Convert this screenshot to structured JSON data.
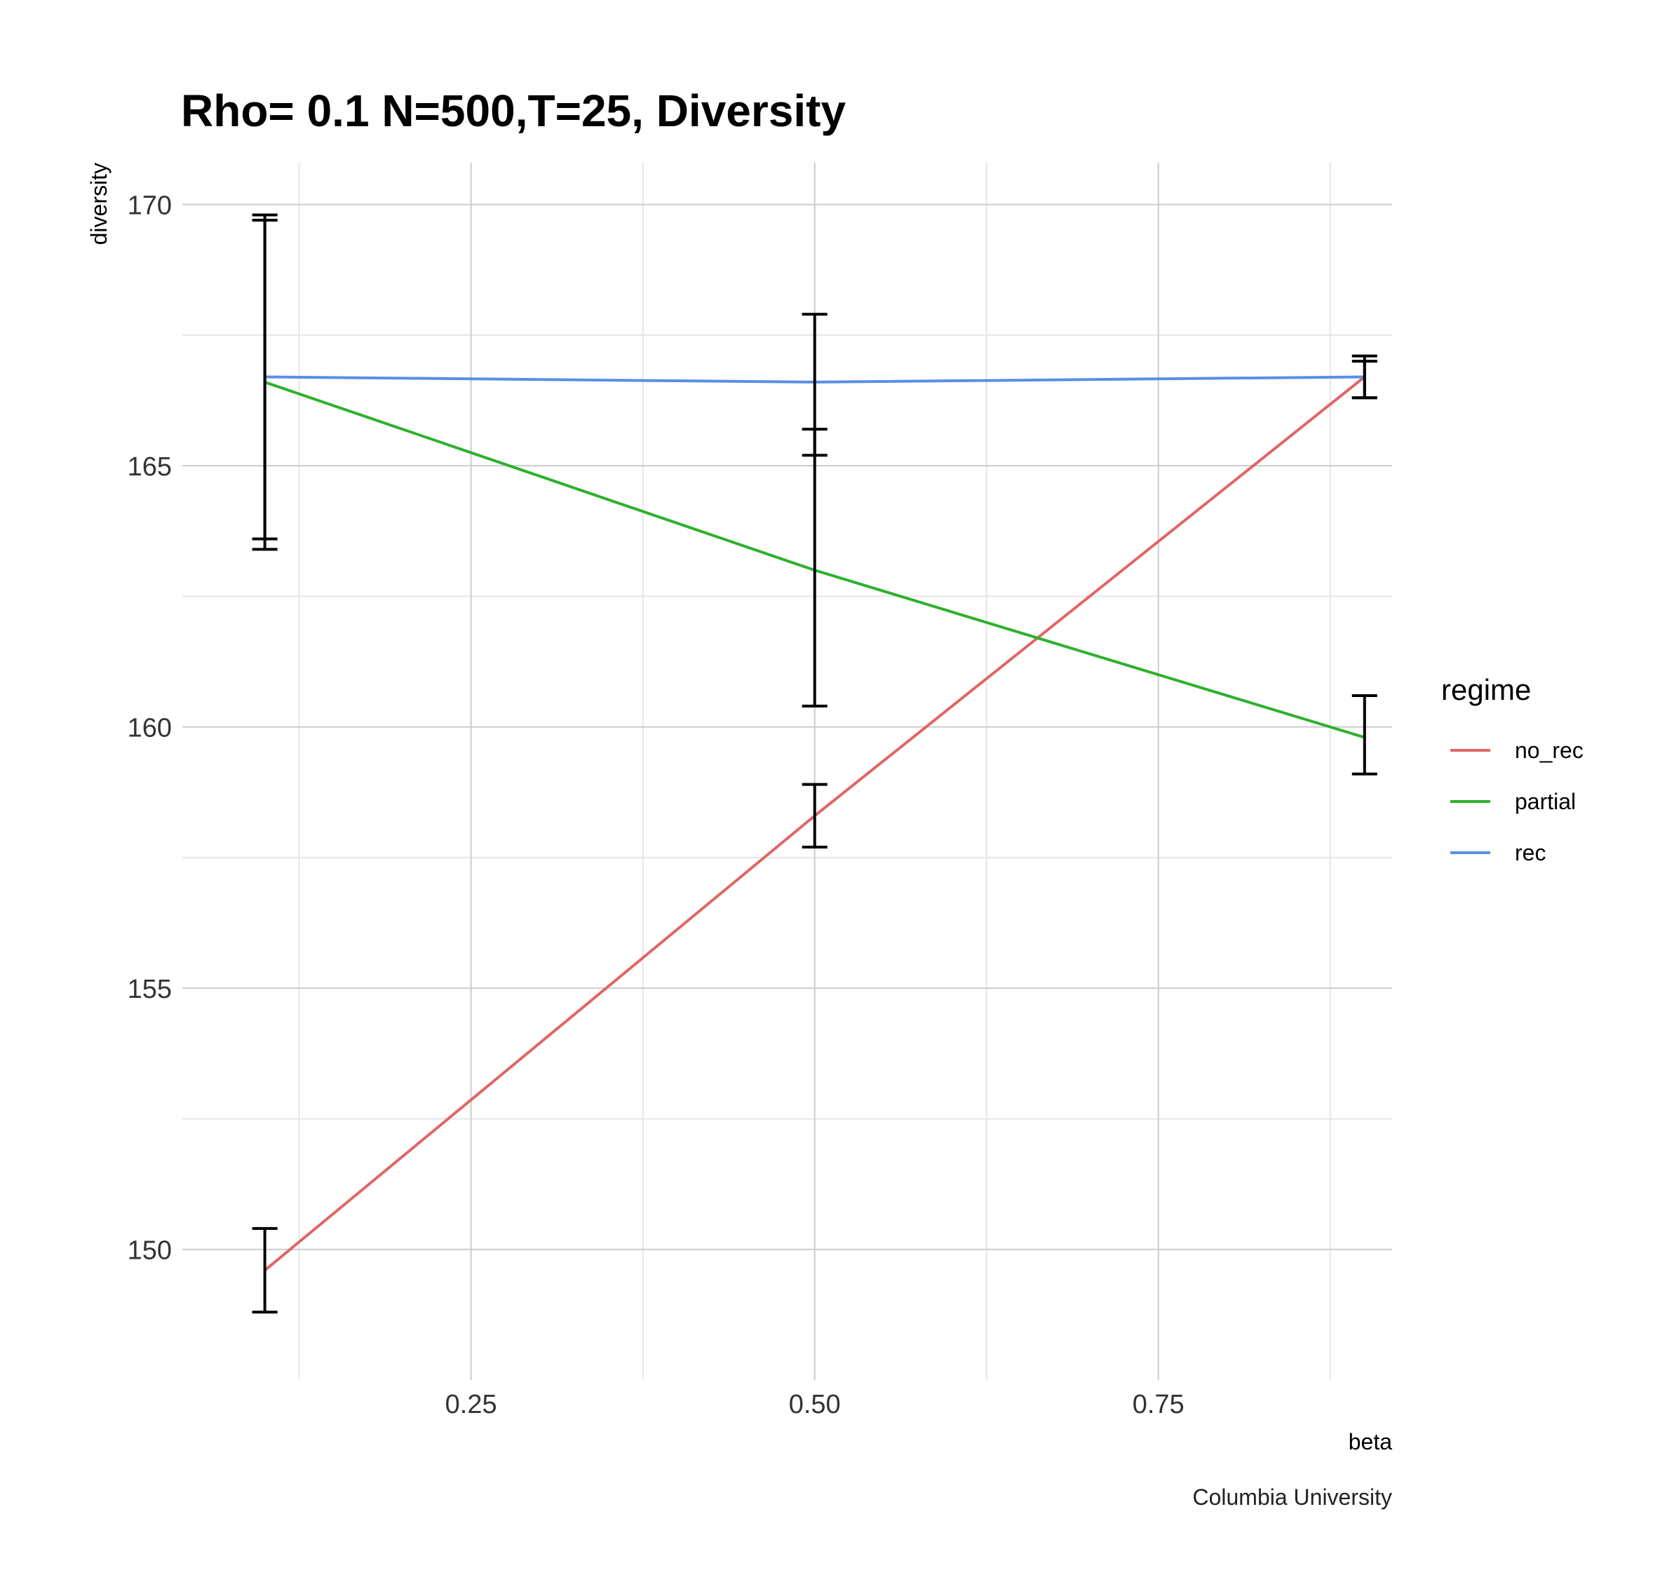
{
  "chart_data": {
    "type": "line",
    "title": "Rho= 0.1 N=500,T=25, Diversity",
    "xlabel": "beta",
    "ylabel": "diversity",
    "caption": "Columbia University",
    "xlim": [
      0.04,
      0.92
    ],
    "ylim": [
      147.5,
      170.8
    ],
    "xticks": [
      0.25,
      0.5,
      0.75
    ],
    "xtick_labels": [
      "0.25",
      "0.50",
      "0.75"
    ],
    "xminor": [
      0.125,
      0.375,
      0.625,
      0.875
    ],
    "yticks": [
      150,
      155,
      160,
      165,
      170
    ],
    "ytick_labels": [
      "150",
      "155",
      "160",
      "165",
      "170"
    ],
    "yminor": [
      152.5,
      157.5,
      162.5,
      167.5
    ],
    "grid": true,
    "legend": {
      "title": "regime",
      "position": "right"
    },
    "x": [
      0.1,
      0.5,
      0.9
    ],
    "series": [
      {
        "name": "no_rec",
        "color": "#E06666",
        "values": [
          149.6,
          158.3,
          166.7
        ],
        "errors": [
          [
            148.8,
            150.4
          ],
          [
            157.7,
            158.9
          ],
          [
            166.3,
            167.1
          ]
        ]
      },
      {
        "name": "partial",
        "color": "#2DB12D",
        "values": [
          166.6,
          163.0,
          159.8
        ],
        "errors": [
          [
            163.6,
            169.7
          ],
          [
            160.4,
            165.7
          ],
          [
            159.1,
            160.6
          ]
        ]
      },
      {
        "name": "rec",
        "color": "#5B8EE6",
        "values": [
          166.7,
          166.6,
          166.7
        ],
        "errors": [
          [
            163.4,
            169.8
          ],
          [
            165.2,
            167.9
          ],
          [
            166.3,
            167.0
          ]
        ]
      }
    ]
  }
}
